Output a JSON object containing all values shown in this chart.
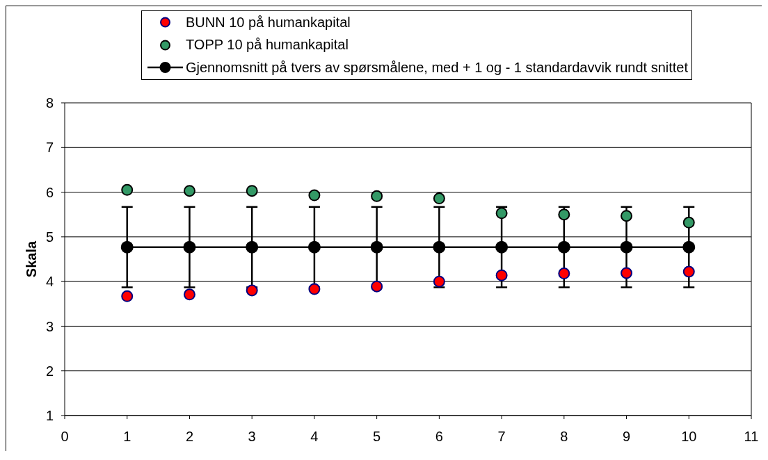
{
  "chart_data": {
    "type": "scatter",
    "ylabel": "Skala",
    "x": [
      1,
      2,
      3,
      4,
      5,
      6,
      7,
      8,
      9,
      10
    ],
    "series": [
      {
        "name": "BUNN 10 på humankapital",
        "color": "#ff0000",
        "values": [
          3.67,
          3.71,
          3.8,
          3.83,
          3.89,
          4.0,
          4.14,
          4.18,
          4.19,
          4.22
        ]
      },
      {
        "name": "TOPP 10 på humankapital",
        "color": "#339966",
        "values": [
          6.05,
          6.03,
          6.03,
          5.93,
          5.91,
          5.86,
          5.53,
          5.5,
          5.47,
          5.32
        ]
      },
      {
        "name": "Gjennomsnitt på tvers av spørsmålene, med + 1 og - 1 standardavvik rundt snittet",
        "type": "line",
        "color": "#000000",
        "values": [
          4.77,
          4.77,
          4.77,
          4.77,
          4.77,
          4.77,
          4.77,
          4.77,
          4.77,
          4.77
        ],
        "errors": [
          0.9,
          0.9,
          0.9,
          0.9,
          0.9,
          0.9,
          0.9,
          0.9,
          0.9,
          0.9
        ]
      }
    ],
    "xlim": [
      0,
      11
    ],
    "xticks": [
      0,
      1,
      2,
      3,
      4,
      5,
      6,
      7,
      8,
      9,
      10,
      11
    ],
    "ylim": [
      1,
      8
    ],
    "yticks": [
      1,
      2,
      3,
      4,
      5,
      6,
      7,
      8
    ],
    "grid": "y",
    "legend": "top",
    "marker": "circle"
  }
}
